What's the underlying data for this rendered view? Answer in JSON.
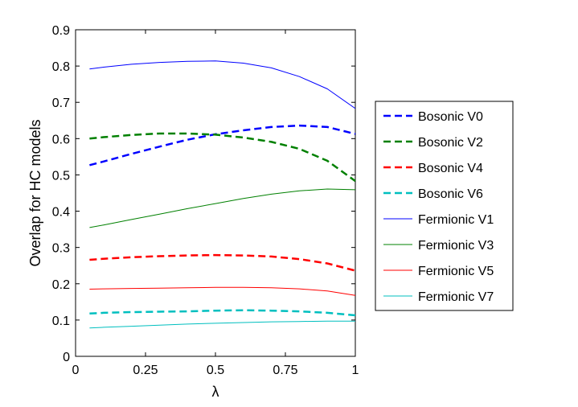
{
  "chart_data": {
    "type": "line",
    "title": "",
    "xlabel": "λ",
    "ylabel": "Overlap for HC models",
    "xlim": [
      0,
      1
    ],
    "ylim": [
      0,
      0.9
    ],
    "xticks": [
      0,
      0.25,
      0.5,
      0.75,
      1
    ],
    "xtick_labels": [
      "0",
      "0.25",
      "0.5",
      "0.75",
      "1"
    ],
    "yticks": [
      0,
      0.1,
      0.2,
      0.3,
      0.4,
      0.5,
      0.6,
      0.7,
      0.8,
      0.9
    ],
    "ytick_labels": [
      "0",
      "0.1",
      "0.2",
      "0.3",
      "0.4",
      "0.5",
      "0.6",
      "0.7",
      "0.8",
      "0.9"
    ],
    "grid": false,
    "legend_position": "outside-right",
    "x": [
      0.05,
      0.1,
      0.2,
      0.3,
      0.4,
      0.5,
      0.6,
      0.7,
      0.8,
      0.9,
      1.0
    ],
    "series": [
      {
        "name": "Bosonic V0",
        "color": "#0000ff",
        "style": "dashed",
        "values": [
          0.527,
          0.537,
          0.558,
          0.578,
          0.597,
          0.612,
          0.623,
          0.632,
          0.636,
          0.632,
          0.613
        ]
      },
      {
        "name": "Bosonic V2",
        "color": "#008000",
        "style": "dashed",
        "values": [
          0.6,
          0.604,
          0.61,
          0.614,
          0.614,
          0.611,
          0.603,
          0.591,
          0.572,
          0.539,
          0.483
        ]
      },
      {
        "name": "Bosonic V4",
        "color": "#ff0000",
        "style": "dashed",
        "values": [
          0.266,
          0.269,
          0.273,
          0.276,
          0.278,
          0.279,
          0.278,
          0.275,
          0.268,
          0.256,
          0.236
        ]
      },
      {
        "name": "Bosonic V6",
        "color": "#00bfbf",
        "style": "dashed",
        "values": [
          0.118,
          0.12,
          0.122,
          0.123,
          0.124,
          0.126,
          0.127,
          0.126,
          0.124,
          0.12,
          0.113
        ]
      },
      {
        "name": "Fermionic V1",
        "color": "#0000ff",
        "style": "solid",
        "values": [
          0.792,
          0.797,
          0.805,
          0.81,
          0.813,
          0.814,
          0.808,
          0.795,
          0.771,
          0.737,
          0.683
        ]
      },
      {
        "name": "Fermionic V3",
        "color": "#008000",
        "style": "solid",
        "values": [
          0.355,
          0.362,
          0.377,
          0.392,
          0.407,
          0.421,
          0.435,
          0.447,
          0.456,
          0.461,
          0.459
        ]
      },
      {
        "name": "Fermionic V5",
        "color": "#ff0000",
        "style": "solid",
        "values": [
          0.185,
          0.186,
          0.187,
          0.188,
          0.189,
          0.19,
          0.19,
          0.189,
          0.186,
          0.18,
          0.168
        ]
      },
      {
        "name": "Fermionic V7",
        "color": "#00bfbf",
        "style": "solid",
        "values": [
          0.078,
          0.08,
          0.083,
          0.086,
          0.089,
          0.091,
          0.093,
          0.095,
          0.096,
          0.097,
          0.097
        ]
      }
    ]
  }
}
